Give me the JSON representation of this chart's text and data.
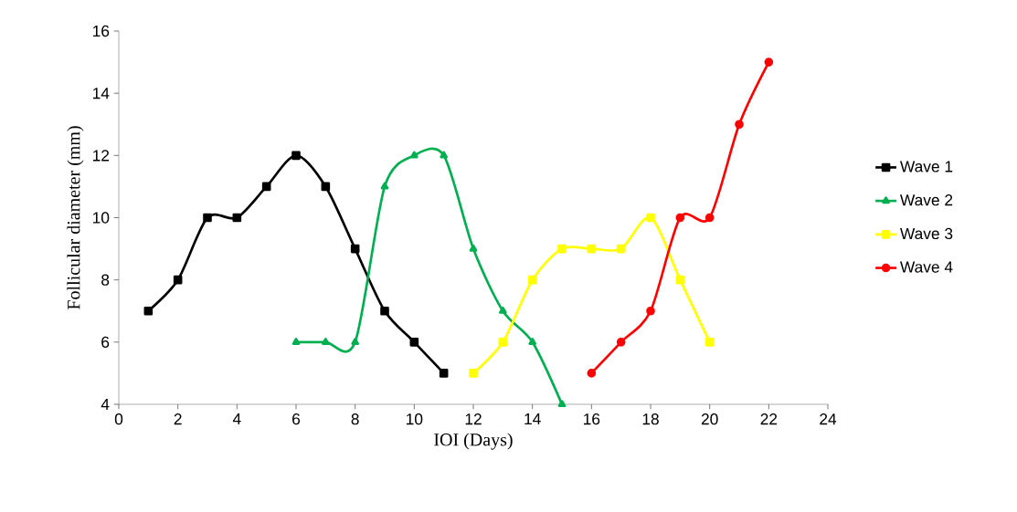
{
  "chart_data": {
    "type": "line",
    "xlabel": "IOI (Days)",
    "ylabel": "Follicular diameter (mm)",
    "xlim": [
      0,
      24
    ],
    "xticks": [
      0,
      2,
      4,
      6,
      8,
      10,
      12,
      14,
      16,
      18,
      20,
      22,
      24
    ],
    "ylim": [
      4,
      16
    ],
    "yticks": [
      4,
      6,
      8,
      10,
      12,
      14,
      16
    ],
    "grid": false,
    "legend": "right",
    "line_style": "solid",
    "series": [
      {
        "name": "Wave 1",
        "color": "#000000",
        "marker": "square",
        "x": [
          1,
          2,
          3,
          4,
          5,
          6,
          7,
          8,
          9,
          10,
          11
        ],
        "values": [
          7,
          8,
          10,
          10,
          11,
          12,
          11,
          9,
          7,
          6,
          5
        ]
      },
      {
        "name": "Wave 2",
        "color": "#00b050",
        "marker": "triangle",
        "x": [
          6,
          7,
          8,
          9,
          10,
          11,
          12,
          13,
          14,
          15
        ],
        "values": [
          6,
          6,
          6,
          11,
          12,
          12,
          9,
          7,
          6,
          4
        ]
      },
      {
        "name": "Wave 3",
        "color": "#ffff00",
        "marker": "square",
        "x": [
          12,
          13,
          14,
          15,
          16,
          17,
          18,
          19,
          20
        ],
        "values": [
          5,
          6,
          8,
          9,
          9,
          9,
          10,
          8,
          6
        ]
      },
      {
        "name": "Wave 4",
        "color": "#ff0000",
        "marker": "circle",
        "x": [
          16,
          17,
          18,
          19,
          20,
          21,
          22
        ],
        "values": [
          5,
          6,
          7,
          10,
          10,
          13,
          15
        ]
      }
    ]
  }
}
